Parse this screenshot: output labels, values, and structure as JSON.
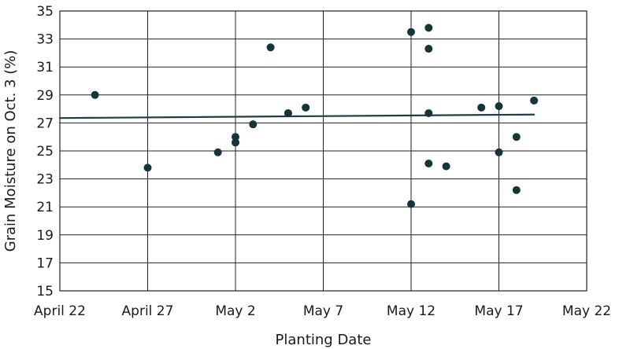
{
  "chart_data": {
    "type": "scatter",
    "title": "",
    "xlabel": "Planting Date",
    "ylabel": "Grain Moisture on Oct. 3 (%)",
    "grid": true,
    "x_ticks": [
      {
        "date": "April 22",
        "label": "April 22"
      },
      {
        "date": "April 27",
        "label": "April 27"
      },
      {
        "date": "May 2",
        "label": "May 2"
      },
      {
        "date": "May 7",
        "label": "May 7"
      },
      {
        "date": "May 12",
        "label": "May 12"
      },
      {
        "date": "May 17",
        "label": "May 17"
      },
      {
        "date": "May 22",
        "label": "May 22"
      }
    ],
    "xlim": [
      "April 22",
      "May 22"
    ],
    "ylim": [
      15,
      35
    ],
    "y_ticks": [
      15,
      17,
      19,
      21,
      23,
      25,
      27,
      29,
      31,
      33,
      35
    ],
    "point_color": "#16353a",
    "trend_color": "#1d3f44",
    "points": [
      {
        "x": "April 24",
        "y": 29.0
      },
      {
        "x": "April 27",
        "y": 23.8
      },
      {
        "x": "May 1",
        "y": 24.9
      },
      {
        "x": "May 2",
        "y": 26.0
      },
      {
        "x": "May 2",
        "y": 25.6
      },
      {
        "x": "May 3",
        "y": 26.9
      },
      {
        "x": "May 4",
        "y": 32.4
      },
      {
        "x": "May 5",
        "y": 27.7
      },
      {
        "x": "May 6",
        "y": 28.1
      },
      {
        "x": "May 12",
        "y": 33.5
      },
      {
        "x": "May 12",
        "y": 21.2
      },
      {
        "x": "May 13",
        "y": 33.8
      },
      {
        "x": "May 13",
        "y": 32.3
      },
      {
        "x": "May 13",
        "y": 27.7
      },
      {
        "x": "May 13",
        "y": 24.1
      },
      {
        "x": "May 14",
        "y": 23.9
      },
      {
        "x": "May 16",
        "y": 28.1
      },
      {
        "x": "May 17",
        "y": 28.2
      },
      {
        "x": "May 17",
        "y": 24.9
      },
      {
        "x": "May 18",
        "y": 26.0
      },
      {
        "x": "May 18",
        "y": 22.2
      },
      {
        "x": "May 19",
        "y": 28.6
      }
    ],
    "trendline": [
      {
        "x": "April 22",
        "y": 27.35
      },
      {
        "x": "May 19",
        "y": 27.6
      }
    ]
  }
}
